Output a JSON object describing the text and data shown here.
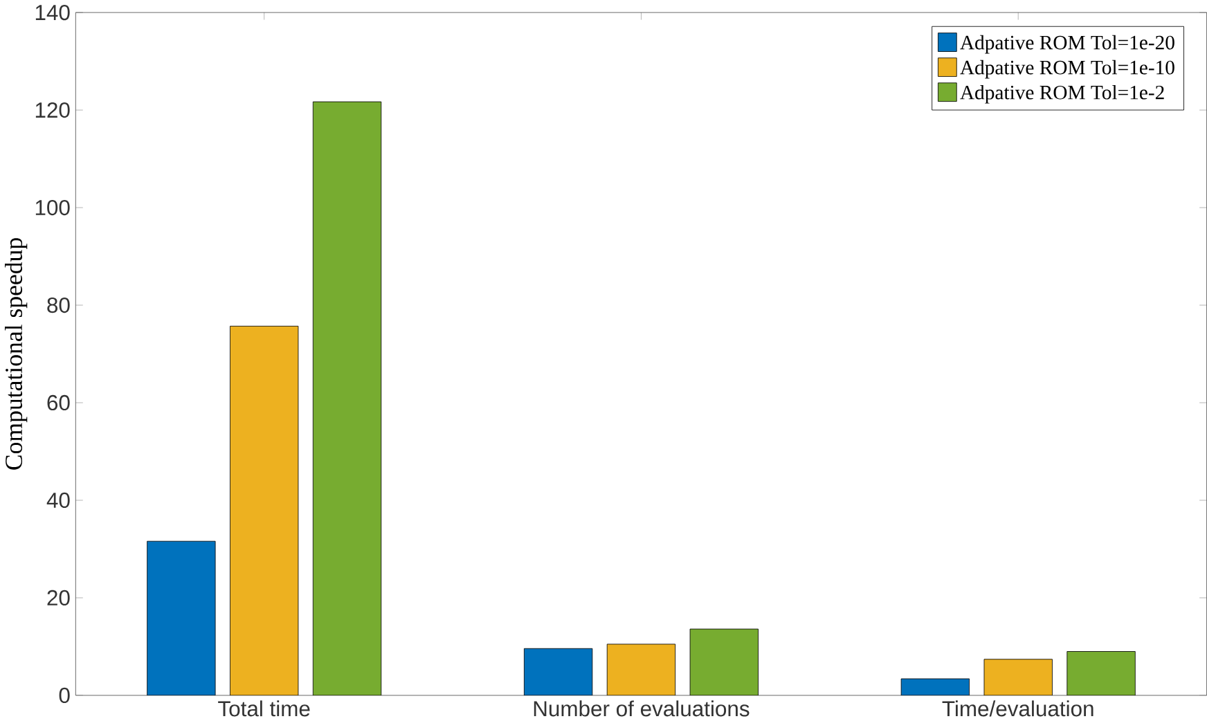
{
  "chart_data": {
    "type": "bar",
    "ylabel": "Computational speedup",
    "categories": [
      "Total time",
      "Number of evaluations",
      "Time/evaluation"
    ],
    "series": [
      {
        "name": "Adpative ROM Tol=1e-20",
        "color": "#0072bd",
        "values": [
          31.6,
          9.6,
          3.4
        ]
      },
      {
        "name": "Adpative ROM Tol=1e-10",
        "color": "#edb120",
        "values": [
          75.7,
          10.5,
          7.4
        ]
      },
      {
        "name": "Adpative ROM Tol=1e-2",
        "color": "#77ac30",
        "values": [
          121.7,
          13.6,
          9.0
        ]
      }
    ],
    "ylim": [
      0,
      140
    ],
    "yticks": [
      0,
      20,
      40,
      60,
      80,
      100,
      120,
      140
    ],
    "grid": false,
    "legend": "top right"
  }
}
